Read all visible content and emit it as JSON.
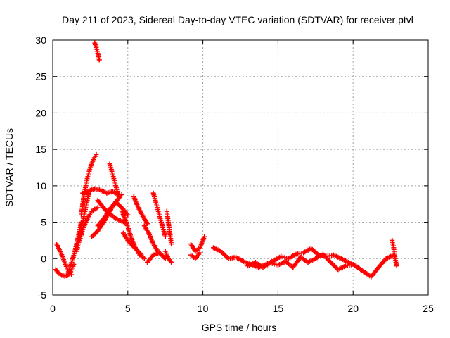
{
  "chart_data": {
    "type": "scatter",
    "title": "Day 211 of 2023, Sidereal Day-to-day VTEC variation (SDTVAR) for receiver ptvl",
    "xlabel": "GPS time / hours",
    "ylabel": "SDTVAR / TECUs",
    "xlim": [
      0,
      25
    ],
    "ylim": [
      -5,
      30
    ],
    "xticks": [
      "0",
      "5",
      "10",
      "15",
      "20",
      "25"
    ],
    "yticks": [
      "-5",
      "0",
      "5",
      "10",
      "15",
      "20",
      "25",
      "30"
    ],
    "grid": true,
    "marker": "+",
    "color": "#ff0000",
    "series": [
      {
        "name": "s1",
        "x": [
          0.2,
          0.4,
          0.6,
          0.8,
          1.0,
          1.2,
          1.4
        ],
        "y": [
          -1.5,
          -2.0,
          -2.3,
          -2.4,
          -2.3,
          -1.8,
          -0.8
        ]
      },
      {
        "name": "s2",
        "x": [
          0.25,
          0.45,
          0.65,
          0.85,
          1.05,
          1.25
        ],
        "y": [
          2.0,
          1.2,
          0.3,
          -0.8,
          -1.8,
          -2.2
        ]
      },
      {
        "name": "s3",
        "x": [
          1.1,
          1.3,
          1.5,
          1.7,
          1.9
        ],
        "y": [
          -1.5,
          -0.3,
          1.2,
          3.0,
          5.0
        ]
      },
      {
        "name": "s4",
        "x": [
          1.6,
          1.8,
          2.0,
          2.2,
          2.4
        ],
        "y": [
          1.0,
          3.0,
          5.0,
          7.0,
          9.0
        ]
      },
      {
        "name": "s5",
        "x": [
          1.8,
          2.0,
          2.2,
          2.4,
          2.6,
          2.8,
          3.0
        ],
        "y": [
          2.5,
          4.0,
          5.0,
          5.8,
          6.5,
          6.8,
          7.0
        ]
      },
      {
        "name": "s6",
        "x": [
          1.9,
          2.1,
          2.3,
          2.5,
          2.7,
          2.9
        ],
        "y": [
          6.0,
          9.0,
          11.0,
          12.5,
          13.6,
          14.3
        ]
      },
      {
        "name": "s7",
        "x": [
          2.8,
          2.9,
          3.0,
          3.1
        ],
        "y": [
          29.6,
          29.0,
          28.2,
          27.3
        ]
      },
      {
        "name": "s8",
        "x": [
          2.0,
          2.4,
          2.8,
          3.2,
          3.6,
          4.0,
          4.4
        ],
        "y": [
          9.0,
          9.3,
          9.6,
          9.4,
          9.0,
          9.2,
          8.8
        ]
      },
      {
        "name": "s9",
        "x": [
          2.6,
          3.0,
          3.4,
          3.8,
          4.2,
          4.6
        ],
        "y": [
          3.0,
          3.8,
          5.0,
          6.5,
          7.8,
          8.8
        ]
      },
      {
        "name": "s10",
        "x": [
          3.0,
          3.3,
          3.6,
          3.9,
          4.2,
          4.5,
          4.8
        ],
        "y": [
          8.0,
          7.2,
          6.5,
          6.0,
          5.5,
          5.2,
          5.0
        ]
      },
      {
        "name": "s11",
        "x": [
          3.8,
          4.0,
          4.2,
          4.4
        ],
        "y": [
          13.0,
          11.5,
          10.0,
          8.5
        ]
      },
      {
        "name": "s12",
        "x": [
          3.0,
          3.4,
          3.8,
          4.2,
          4.6,
          5.0
        ],
        "y": [
          4.5,
          5.5,
          6.8,
          7.8,
          7.0,
          6.0
        ]
      },
      {
        "name": "s13",
        "x": [
          4.6,
          4.9,
          5.2,
          5.5,
          5.8,
          6.1
        ],
        "y": [
          6.5,
          5.0,
          3.0,
          1.5,
          0.5,
          0.0
        ]
      },
      {
        "name": "s14",
        "x": [
          4.7,
          5.0,
          5.3,
          5.6,
          5.9
        ],
        "y": [
          3.5,
          2.5,
          1.8,
          1.2,
          0.5
        ]
      },
      {
        "name": "s15",
        "x": [
          5.4,
          5.7,
          6.0,
          6.3
        ],
        "y": [
          8.5,
          7.0,
          5.8,
          4.8
        ]
      },
      {
        "name": "s16",
        "x": [
          6.1,
          6.4,
          6.7,
          7.0
        ],
        "y": [
          4.5,
          3.5,
          2.0,
          1.0
        ]
      },
      {
        "name": "s17",
        "x": [
          6.3,
          6.7,
          7.1,
          7.5
        ],
        "y": [
          -0.5,
          0.5,
          0.8,
          0.0
        ]
      },
      {
        "name": "s18",
        "x": [
          6.7,
          6.9,
          7.1,
          7.3,
          7.5
        ],
        "y": [
          9.0,
          7.5,
          6.0,
          4.5,
          3.0
        ]
      },
      {
        "name": "s19",
        "x": [
          7.6,
          7.7,
          7.8,
          7.9
        ],
        "y": [
          6.5,
          5.0,
          3.5,
          2.0
        ]
      },
      {
        "name": "s20",
        "x": [
          7.5,
          7.7,
          7.9
        ],
        "y": [
          1.0,
          0.0,
          -0.5
        ]
      },
      {
        "name": "s21",
        "x": [
          9.2,
          9.5,
          9.8,
          10.1
        ],
        "y": [
          2.0,
          1.0,
          1.5,
          3.0
        ]
      },
      {
        "name": "s22",
        "x": [
          9.2,
          9.5,
          9.8
        ],
        "y": [
          0.5,
          0.0,
          0.8
        ]
      },
      {
        "name": "s23",
        "x": [
          10.7,
          11.2,
          11.7,
          12.2,
          12.7,
          13.2,
          13.7,
          14.2,
          14.7,
          15.2,
          15.7,
          16.2,
          16.7,
          17.2,
          17.7,
          18.2,
          18.7,
          19.2,
          19.7,
          20.2,
          20.7,
          21.2,
          21.7,
          22.2,
          22.7
        ],
        "y": [
          1.5,
          1.0,
          0.0,
          0.2,
          -0.4,
          -0.8,
          -1.2,
          -0.8,
          -0.3,
          0.3,
          0.0,
          0.6,
          0.8,
          1.4,
          0.5,
          0.3,
          0.5,
          0.0,
          -0.5,
          -1.0,
          -1.8,
          -2.5,
          -1.2,
          0.0,
          0.5
        ]
      },
      {
        "name": "s24",
        "x": [
          13.0,
          13.5,
          14.0,
          14.5,
          15.0,
          15.5,
          16.0,
          16.5,
          17.0,
          17.5,
          18.0,
          18.5,
          19.0,
          19.5,
          20.0,
          20.5,
          21.0
        ],
        "y": [
          -1.0,
          -0.5,
          -1.2,
          -0.6,
          -0.9,
          -0.4,
          -1.2,
          0.2,
          -0.5,
          0.0,
          0.6,
          -0.5,
          -1.5,
          -1.0,
          -0.8,
          -1.5,
          -2.2
        ]
      },
      {
        "name": "s25",
        "x": [
          22.6,
          22.7,
          22.8,
          22.9
        ],
        "y": [
          2.5,
          1.5,
          0.0,
          -1.0
        ]
      }
    ]
  }
}
